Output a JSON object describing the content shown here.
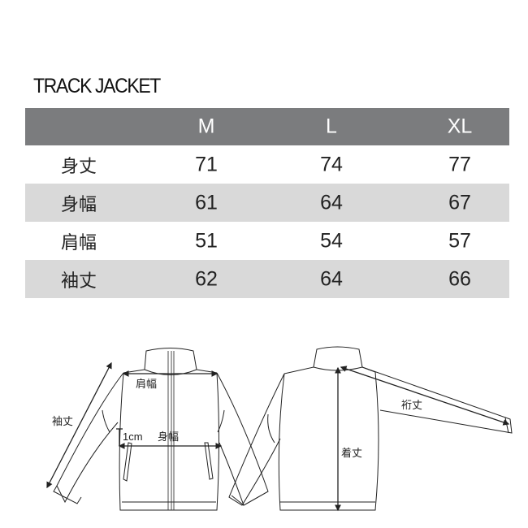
{
  "title": "TRACK JACKET",
  "table": {
    "columns": [
      "",
      "M",
      "L",
      "XL"
    ],
    "rows": [
      {
        "label": "身丈",
        "values": [
          "71",
          "74",
          "77"
        ]
      },
      {
        "label": "身幅",
        "values": [
          "61",
          "64",
          "67"
        ]
      },
      {
        "label": "肩幅",
        "values": [
          "51",
          "54",
          "57"
        ]
      },
      {
        "label": "袖丈",
        "values": [
          "62",
          "64",
          "66"
        ]
      }
    ],
    "header_color": "#7b7c7e",
    "stripe_color": "#d9d9d9"
  },
  "diagram": {
    "sleeve_length": "袖丈",
    "shoulder_width": "肩幅",
    "offset": "1cm",
    "body_width": "身幅",
    "yuki_length": "裄丈",
    "body_length": "着丈"
  }
}
